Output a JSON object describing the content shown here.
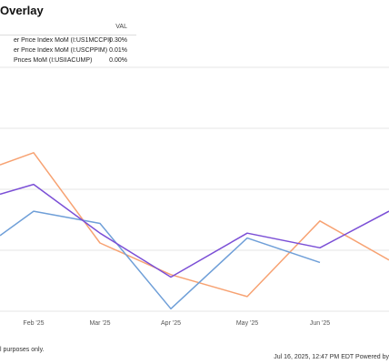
{
  "header": {
    "title": "Overlay"
  },
  "legend": {
    "column_header": "VAL",
    "items": [
      {
        "name": "er Price Index MoM (I:US1MCCPI)",
        "value": "0.30%",
        "color": "#f7a272"
      },
      {
        "name": "er Price Index MoM (I:USCPPIM)",
        "value": "0.01%",
        "color": "#6f9fd8"
      },
      {
        "name": "Prices MoM (I:USIIACUMP)",
        "value": "0.00%",
        "color": "#7b4fd6"
      }
    ]
  },
  "footer": {
    "disclaimer": "l purposes only.",
    "timestamp": "Jul 16, 2025, 12:47 PM EDT Powered by"
  },
  "chart_data": {
    "type": "line",
    "categories": [
      "",
      "Feb '25",
      "Mar '25",
      "Apr '25",
      "May '25",
      "Jun '25",
      ""
    ],
    "visible_tick_labels": [
      "Feb '25",
      "Mar '25",
      "Apr '25",
      "May '25",
      "Jun '25"
    ],
    "ylim": [
      0,
      5
    ],
    "grid": true,
    "series": [
      {
        "name": "er Price Index MoM (I:US1MCCPI)",
        "color": "#f7a272",
        "values": [
          3.0,
          3.25,
          1.4,
          0.75,
          0.3,
          1.85,
          1.05
        ]
      },
      {
        "name": "er Price Index MoM (I:USCPPIM)",
        "color": "#6f9fd8",
        "values": [
          1.55,
          2.05,
          1.8,
          0.05,
          1.5,
          1.0,
          null
        ]
      },
      {
        "name": "Prices MoM (I:USIIACUMP)",
        "color": "#7b4fd6",
        "values": [
          2.4,
          2.6,
          1.6,
          0.7,
          1.6,
          1.3,
          2.05
        ]
      }
    ]
  }
}
